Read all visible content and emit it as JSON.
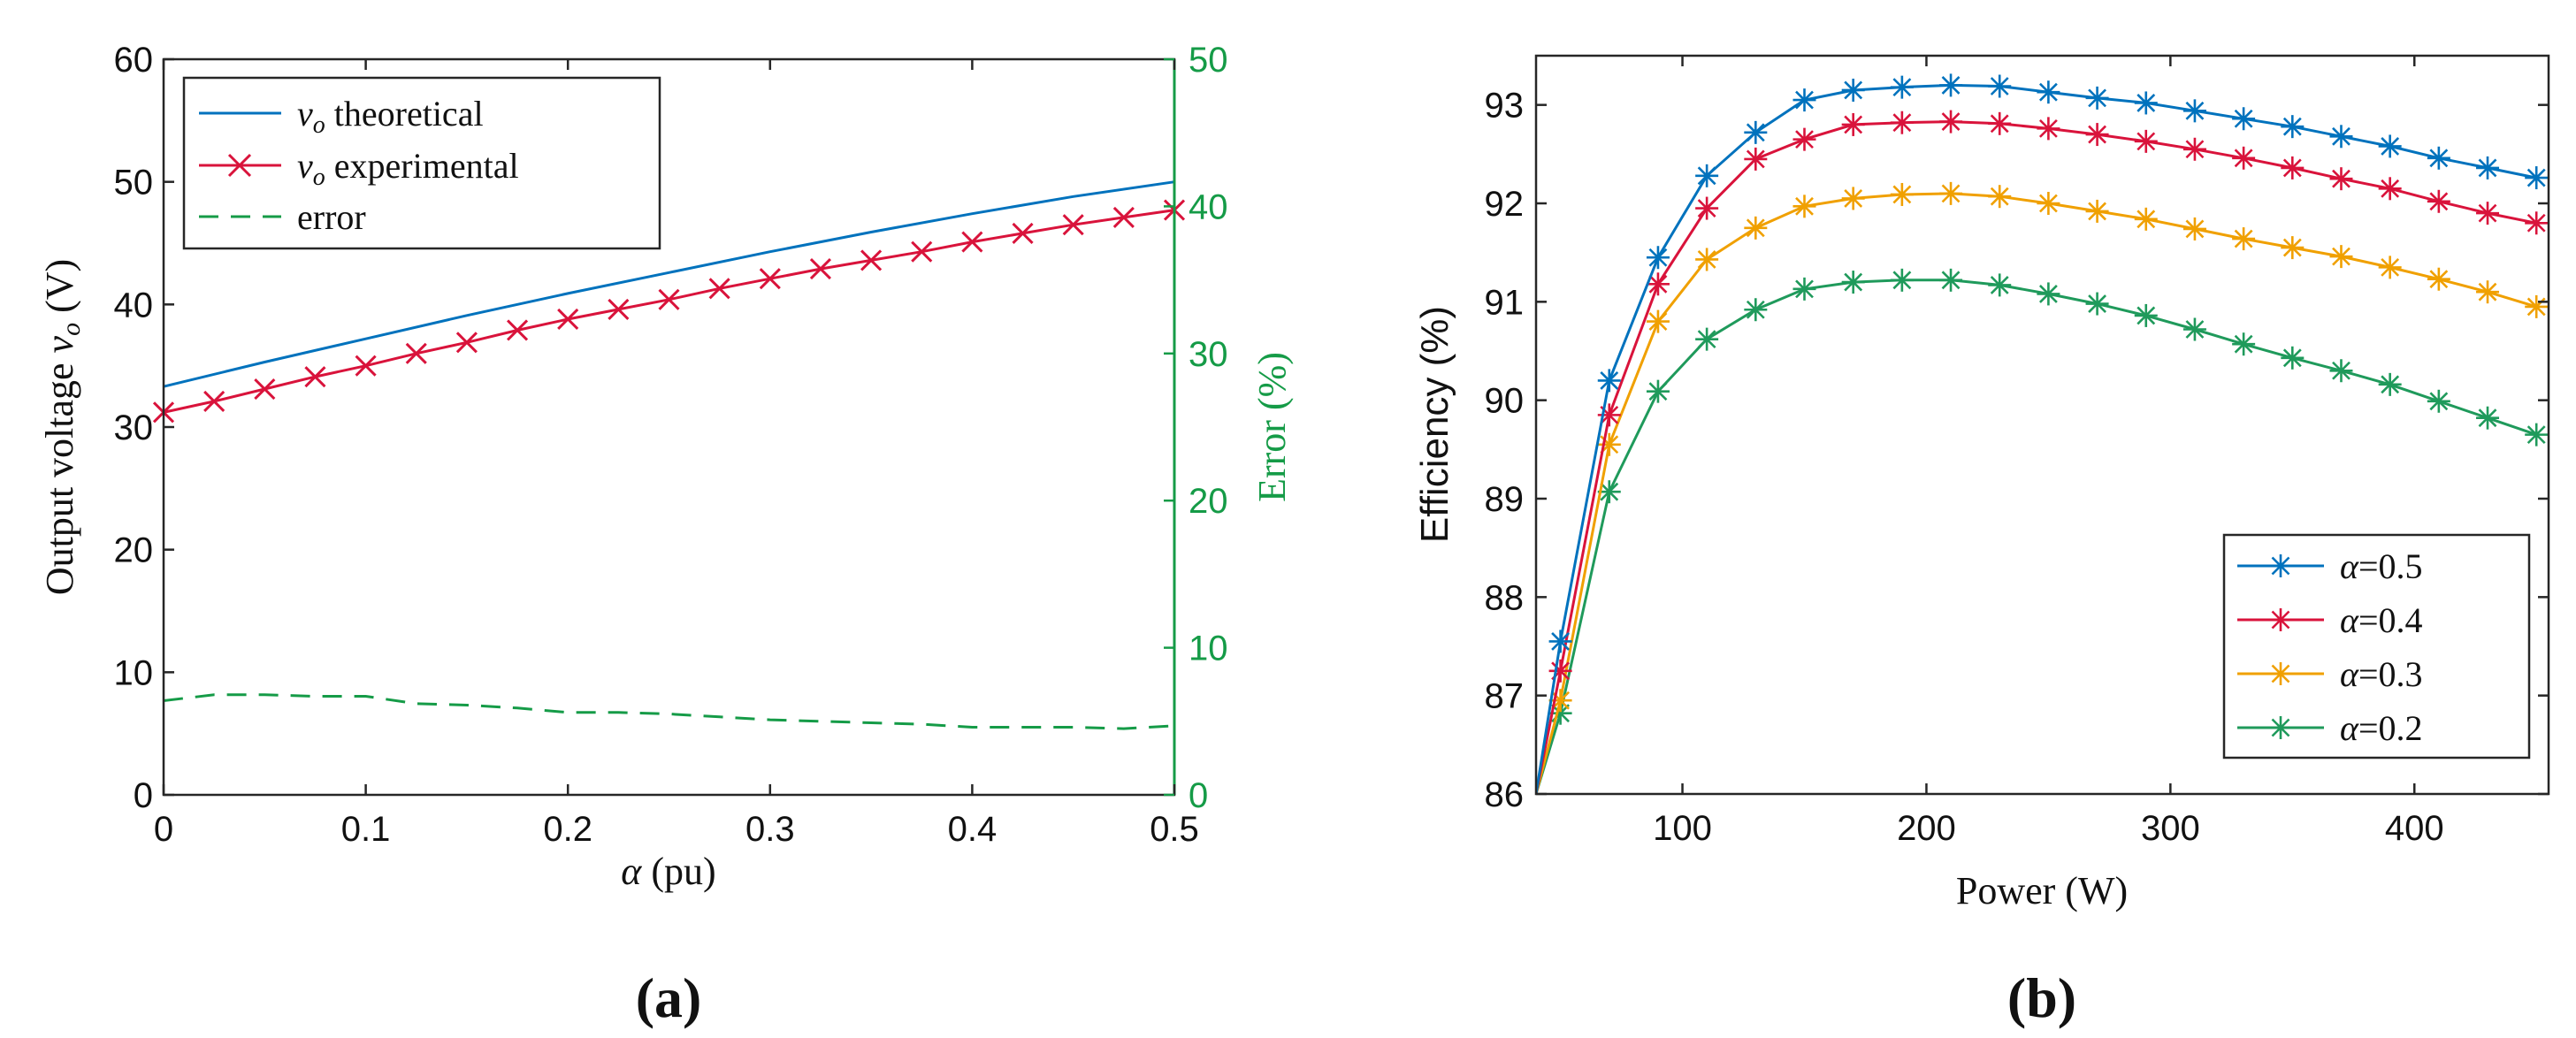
{
  "chart_data": [
    {
      "panel_label": "(a)",
      "type": "line",
      "xlabel_symbol": "α",
      "xlabel_unit": "(pu)",
      "ylabel_text": "Output voltage",
      "ylabel_symbol": "v",
      "ylabel_sub": "o",
      "ylabel_unit": "(V)",
      "y2label": "Error (%)",
      "xlim": [
        0,
        0.5
      ],
      "ylim": [
        0,
        60
      ],
      "y2lim": [
        0,
        50
      ],
      "xticks": [
        "0",
        "0.1",
        "0.2",
        "0.3",
        "0.4",
        "0.5"
      ],
      "yticks": [
        "0",
        "10",
        "20",
        "30",
        "40",
        "50",
        "60"
      ],
      "y2ticks": [
        "0",
        "10",
        "20",
        "30",
        "40",
        "50"
      ],
      "legend_position": "top-left",
      "legend": [
        {
          "symbol": "v",
          "sub": "o",
          "text": " theoretical"
        },
        {
          "symbol": "v",
          "sub": "o",
          "text": " experimental"
        },
        {
          "symbol": "",
          "sub": "",
          "text": "error"
        }
      ],
      "series": [
        {
          "name": "theoretical",
          "axis": "left",
          "color": "#0072BD",
          "marker": "none",
          "dash": "solid",
          "x": [
            0,
            0.05,
            0.1,
            0.15,
            0.2,
            0.25,
            0.3,
            0.35,
            0.4,
            0.45,
            0.5
          ],
          "y": [
            33.3,
            35.3,
            37.2,
            39.1,
            40.9,
            42.6,
            44.3,
            45.9,
            47.4,
            48.8,
            50.0
          ]
        },
        {
          "name": "experimental",
          "axis": "left",
          "color": "#D9133B",
          "marker": "x",
          "dash": "solid",
          "x": [
            0,
            0.025,
            0.05,
            0.075,
            0.1,
            0.125,
            0.15,
            0.175,
            0.2,
            0.225,
            0.25,
            0.275,
            0.3,
            0.325,
            0.35,
            0.375,
            0.4,
            0.425,
            0.45,
            0.475,
            0.5
          ],
          "y": [
            31.2,
            32.1,
            33.1,
            34.1,
            35.0,
            36.0,
            36.9,
            37.9,
            38.8,
            39.6,
            40.4,
            41.3,
            42.1,
            42.9,
            43.6,
            44.3,
            45.1,
            45.8,
            46.5,
            47.1,
            47.7
          ]
        },
        {
          "name": "error",
          "axis": "right",
          "color": "#159B47",
          "marker": "none",
          "dash": "dashed",
          "x": [
            0,
            0.025,
            0.05,
            0.075,
            0.1,
            0.125,
            0.15,
            0.175,
            0.2,
            0.225,
            0.25,
            0.275,
            0.3,
            0.325,
            0.35,
            0.375,
            0.4,
            0.425,
            0.45,
            0.475,
            0.5
          ],
          "y": [
            6.4,
            6.8,
            6.8,
            6.7,
            6.7,
            6.2,
            6.1,
            5.9,
            5.6,
            5.6,
            5.5,
            5.3,
            5.1,
            5.0,
            4.9,
            4.8,
            4.6,
            4.6,
            4.6,
            4.5,
            4.7
          ]
        }
      ]
    },
    {
      "panel_label": "(b)",
      "type": "line",
      "xlabel": "Power (W)",
      "ylabel": "Efficiency (%)",
      "xlim": [
        40,
        455
      ],
      "ylim": [
        86,
        93.5
      ],
      "xticks": [
        "100",
        "200",
        "300",
        "400"
      ],
      "xtick_values": [
        100,
        200,
        300,
        400
      ],
      "yticks": [
        "86",
        "87",
        "88",
        "89",
        "90",
        "91",
        "92",
        "93"
      ],
      "ytick_values": [
        86,
        87,
        88,
        89,
        90,
        91,
        92,
        93
      ],
      "legend_position": "bottom-right",
      "x": [
        50,
        70,
        90,
        110,
        130,
        150,
        170,
        190,
        210,
        230,
        250,
        270,
        290,
        310,
        330,
        350,
        370,
        390,
        410,
        430,
        450
      ],
      "series": [
        {
          "name": "α=0.5",
          "symbol": "α",
          "value": "=0.5",
          "color": "#0072BD",
          "marker": "asterisk",
          "values": [
            87.55,
            90.2,
            91.45,
            92.28,
            92.72,
            93.05,
            93.15,
            93.18,
            93.2,
            93.19,
            93.13,
            93.07,
            93.02,
            92.94,
            92.86,
            92.78,
            92.68,
            92.58,
            92.46,
            92.36,
            92.26
          ]
        },
        {
          "name": "α=0.4",
          "symbol": "α",
          "value": "=0.4",
          "color": "#D9133B",
          "marker": "asterisk",
          "values": [
            87.25,
            89.85,
            91.18,
            91.95,
            92.45,
            92.65,
            92.8,
            92.82,
            92.83,
            92.81,
            92.76,
            92.7,
            92.63,
            92.55,
            92.46,
            92.36,
            92.25,
            92.15,
            92.02,
            91.9,
            91.8
          ]
        },
        {
          "name": "α=0.3",
          "symbol": "α",
          "value": "=0.3",
          "color": "#F0A000",
          "marker": "asterisk",
          "values": [
            86.95,
            89.55,
            90.8,
            91.43,
            91.75,
            91.97,
            92.05,
            92.09,
            92.1,
            92.07,
            92.0,
            91.92,
            91.84,
            91.74,
            91.64,
            91.55,
            91.46,
            91.35,
            91.23,
            91.1,
            90.95
          ]
        },
        {
          "name": "α=0.2",
          "symbol": "α",
          "value": "=0.2",
          "color": "#1F9A5B",
          "marker": "asterisk",
          "values": [
            86.82,
            89.07,
            90.09,
            90.62,
            90.92,
            91.13,
            91.2,
            91.22,
            91.22,
            91.17,
            91.08,
            90.98,
            90.86,
            90.72,
            90.57,
            90.43,
            90.3,
            90.16,
            89.99,
            89.82,
            89.65
          ]
        }
      ]
    }
  ]
}
